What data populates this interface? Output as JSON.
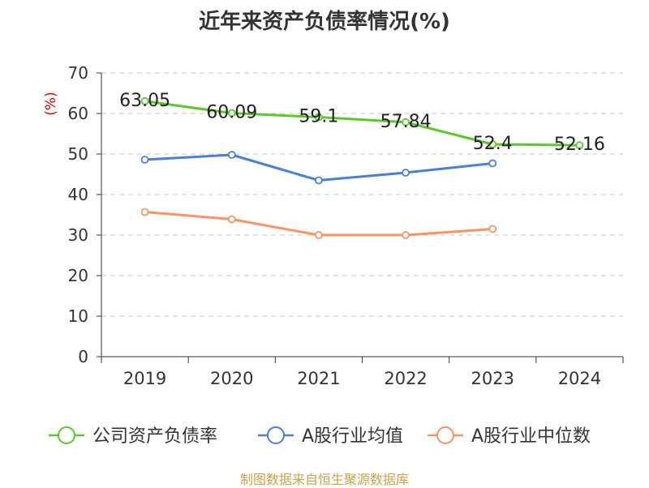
{
  "chart_data": {
    "type": "line",
    "title": "近年来资产负债率情况(%)",
    "ylabel": "(%)",
    "xlabel": "",
    "categories": [
      "2019",
      "2020",
      "2021",
      "2022",
      "2023",
      "2024"
    ],
    "ylim": [
      0,
      70
    ],
    "yticks": [
      0,
      10,
      20,
      30,
      40,
      50,
      60,
      70
    ],
    "grid": true,
    "legend_position": "bottom",
    "series": [
      {
        "name": "公司资产负债率",
        "color": "#5cc72c",
        "values": [
          63.05,
          60.09,
          59.1,
          57.84,
          52.4,
          52.16
        ],
        "labels": [
          "63.05",
          "60.09",
          "59.1",
          "57.84",
          "52.4",
          "52.16"
        ]
      },
      {
        "name": "A股行业均值",
        "color": "#4b7fd6",
        "values": [
          48.6,
          49.8,
          43.5,
          45.4,
          47.7,
          null
        ],
        "labels": []
      },
      {
        "name": "A股行业中位数",
        "color": "#f79463",
        "values": [
          35.7,
          33.9,
          30.0,
          30.0,
          31.5,
          null
        ],
        "labels": []
      }
    ]
  },
  "source": "制图数据来自恒生聚源数据库"
}
